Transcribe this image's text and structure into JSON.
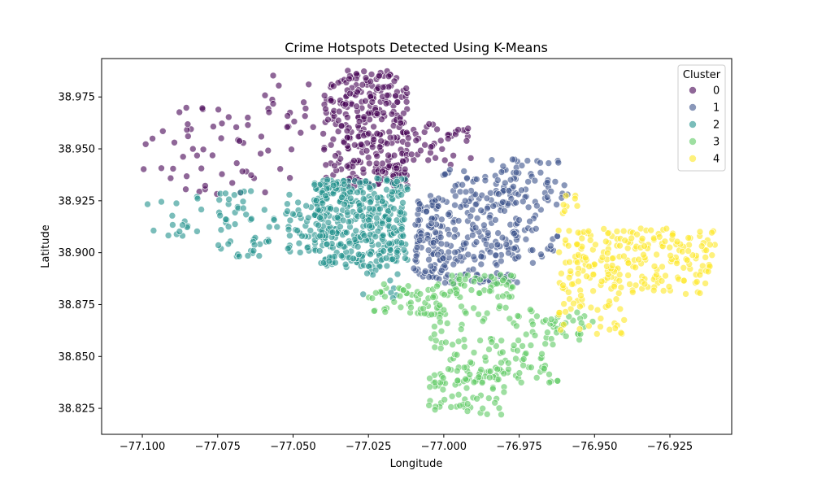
{
  "chart_data": {
    "type": "scatter",
    "title": "Crime Hotspots Detected Using K-Means",
    "xlabel": "Longitude",
    "ylabel": "Latitude",
    "xlim": [
      -77.1135,
      -76.9045
    ],
    "ylim": [
      38.8125,
      38.9935
    ],
    "xticks": [
      -77.1,
      -77.075,
      -77.05,
      -77.025,
      -77.0,
      -76.975,
      -76.95,
      -76.925
    ],
    "xtick_labels": [
      "−77.100",
      "−77.075",
      "−77.050",
      "−77.025",
      "−77.000",
      "−76.975",
      "−76.950",
      "−76.925"
    ],
    "yticks": [
      38.825,
      38.85,
      38.875,
      38.9,
      38.925,
      38.95,
      38.975
    ],
    "ytick_labels": [
      "38.825",
      "38.850",
      "38.875",
      "38.900",
      "38.925",
      "38.950",
      "38.975"
    ],
    "grid": false,
    "legend": {
      "title": "Cluster",
      "position": "top-right"
    },
    "series": [
      {
        "name": "0",
        "color": "#440154",
        "regions": [
          {
            "x": [
              -77.04,
              -77.012
            ],
            "y": [
              38.932,
              38.988
            ],
            "count": 320
          },
          {
            "x": [
              -77.012,
              -76.99
            ],
            "y": [
              38.942,
              38.962
            ],
            "count": 40
          },
          {
            "x": [
              -77.1,
              -77.045
            ],
            "y": [
              38.928,
              38.97
            ],
            "count": 60
          },
          {
            "x": [
              -77.06,
              -77.043
            ],
            "y": [
              38.96,
              38.988
            ],
            "count": 12
          }
        ]
      },
      {
        "name": "1",
        "color": "#3b528b",
        "regions": [
          {
            "x": [
              -77.005,
              -76.975
            ],
            "y": [
              38.885,
              38.94
            ],
            "count": 220
          },
          {
            "x": [
              -77.01,
              -77.0
            ],
            "y": [
              38.888,
              38.925
            ],
            "count": 80
          },
          {
            "x": [
              -76.985,
              -76.962
            ],
            "y": [
              38.895,
              38.945
            ],
            "count": 80
          },
          {
            "x": [
              -76.97,
              -76.958
            ],
            "y": [
              38.925,
              38.935
            ],
            "count": 12
          }
        ]
      },
      {
        "name": "2",
        "color": "#21918c",
        "regions": [
          {
            "x": [
              -77.043,
              -77.012
            ],
            "y": [
              38.893,
              38.936
            ],
            "count": 430
          },
          {
            "x": [
              -77.052,
              -77.04
            ],
            "y": [
              38.9,
              38.925
            ],
            "count": 40
          },
          {
            "x": [
              -77.075,
              -77.05
            ],
            "y": [
              38.898,
              38.93
            ],
            "count": 55
          },
          {
            "x": [
              -77.1,
              -77.08
            ],
            "y": [
              38.908,
              38.928
            ],
            "count": 18
          },
          {
            "x": [
              -77.028,
              -77.015
            ],
            "y": [
              38.878,
              38.892
            ],
            "count": 12
          }
        ]
      },
      {
        "name": "3",
        "color": "#5ec962",
        "regions": [
          {
            "x": [
              -77.025,
              -76.998
            ],
            "y": [
              38.87,
              38.885
            ],
            "count": 60
          },
          {
            "x": [
              -76.998,
              -76.975
            ],
            "y": [
              38.878,
              38.89
            ],
            "count": 50
          },
          {
            "x": [
              -77.005,
              -76.962
            ],
            "y": [
              38.835,
              38.875
            ],
            "count": 140
          },
          {
            "x": [
              -77.005,
              -76.98
            ],
            "y": [
              38.822,
              38.845
            ],
            "count": 60
          },
          {
            "x": [
              -76.965,
              -76.95
            ],
            "y": [
              38.858,
              38.872
            ],
            "count": 20
          }
        ]
      },
      {
        "name": "4",
        "color": "#fde725",
        "regions": [
          {
            "x": [
              -76.962,
              -76.91
            ],
            "y": [
              38.88,
              38.912
            ],
            "count": 230
          },
          {
            "x": [
              -76.962,
              -76.94
            ],
            "y": [
              38.86,
              38.88
            ],
            "count": 35
          },
          {
            "x": [
              -76.962,
              -76.955
            ],
            "y": [
              38.918,
              38.928
            ],
            "count": 8
          }
        ]
      }
    ]
  }
}
